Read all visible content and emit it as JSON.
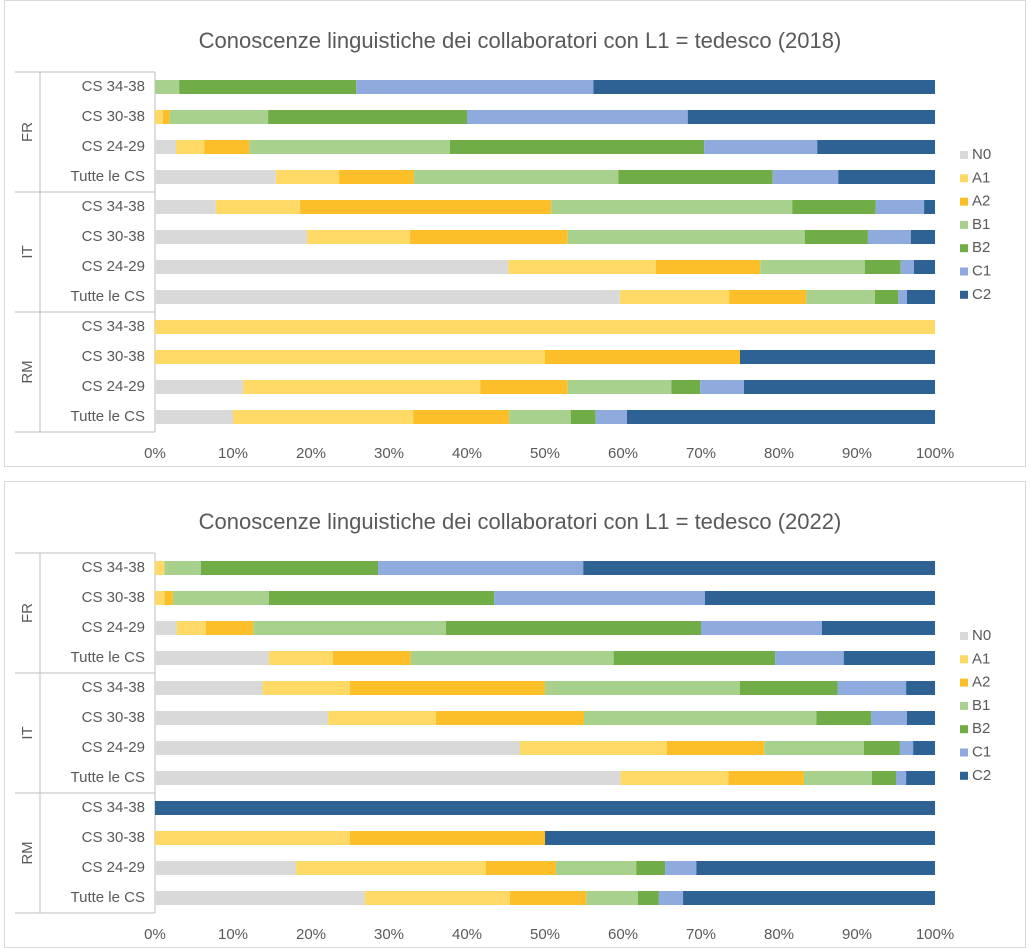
{
  "chart_data": [
    {
      "type": "stacked_bar_horizontal",
      "title": "Conoscenze linguistiche dei collaboratori con L1 = tedesco (2018)",
      "groups": [
        {
          "name": "FR",
          "categories": [
            "CS 34-38",
            "CS 30-38",
            "CS 24-29",
            "Tutte le CS"
          ]
        },
        {
          "name": "IT",
          "categories": [
            "CS 34-38",
            "CS 30-38",
            "CS 24-29",
            "Tutte le CS"
          ]
        },
        {
          "name": "RM",
          "categories": [
            "CS 34-38",
            "CS 30-38",
            "CS 24-29",
            "Tutte le CS"
          ]
        }
      ],
      "xlim": [
        0,
        100
      ],
      "xticks": [
        {
          "value": 0,
          "label": "0%"
        },
        {
          "value": 10,
          "label": "10%"
        },
        {
          "value": 20,
          "label": "20%"
        },
        {
          "value": 30,
          "label": "30%"
        },
        {
          "value": 40,
          "label": "40%"
        },
        {
          "value": 50,
          "label": "50%"
        },
        {
          "value": 60,
          "label": "60%"
        },
        {
          "value": 70,
          "label": "70%"
        },
        {
          "value": 80,
          "label": "80%"
        },
        {
          "value": 90,
          "label": "90%"
        },
        {
          "value": 100,
          "label": "100%"
        }
      ],
      "series": [
        {
          "name": "N0",
          "color": "#d9d9d9",
          "values": [
            0,
            0,
            2.7,
            15.5,
            7.8,
            19.5,
            45.3,
            59.6,
            0,
            0,
            11.3,
            10
          ]
        },
        {
          "name": "A1",
          "color": "#ffd966",
          "values": [
            0,
            1.0,
            3.6,
            8.1,
            10.8,
            13.2,
            18.9,
            14.0,
            100,
            50,
            30.4,
            23.1
          ]
        },
        {
          "name": "A2",
          "color": "#fcbf2a",
          "values": [
            0,
            0.9,
            5.8,
            9.6,
            32.2,
            20.2,
            13.4,
            9.9,
            0,
            25,
            11.2,
            12.3
          ]
        },
        {
          "name": "B1",
          "color": "#a9d18e",
          "values": [
            3.1,
            12.6,
            25.7,
            26.2,
            30.9,
            30.4,
            13.4,
            8.8,
            0,
            0,
            13.3,
            7.9
          ]
        },
        {
          "name": "B2",
          "color": "#70ad47",
          "values": [
            22.7,
            25.5,
            32.6,
            19.8,
            10.7,
            8.1,
            4.6,
            3.0,
            0,
            0,
            3.7,
            3.2
          ]
        },
        {
          "name": "C1",
          "color": "#8faadc",
          "values": [
            30.4,
            28.3,
            14.5,
            8.4,
            6.2,
            5.5,
            1.7,
            1.1,
            0,
            0,
            5.6,
            4.0
          ]
        },
        {
          "name": "C2",
          "color": "#2e6294",
          "values": [
            43.8,
            31.7,
            15.1,
            12.4,
            1.4,
            3.1,
            2.7,
            3.6,
            0,
            25,
            24.5,
            39.5
          ]
        }
      ]
    },
    {
      "type": "stacked_bar_horizontal",
      "title": "Conoscenze linguistiche dei collaboratori con L1 = tedesco (2022)",
      "groups": [
        {
          "name": "FR",
          "categories": [
            "CS 34-38",
            "CS 30-38",
            "CS 24-29",
            "Tutte le CS"
          ]
        },
        {
          "name": "IT",
          "categories": [
            "CS 34-38",
            "CS 30-38",
            "CS 24-29",
            "Tutte le CS"
          ]
        },
        {
          "name": "RM",
          "categories": [
            "CS 34-38",
            "CS 30-38",
            "CS 24-29",
            "Tutte le CS"
          ]
        }
      ],
      "xlim": [
        0,
        100
      ],
      "xticks": [
        {
          "value": 0,
          "label": "0%"
        },
        {
          "value": 10,
          "label": "10%"
        },
        {
          "value": 20,
          "label": "20%"
        },
        {
          "value": 30,
          "label": "30%"
        },
        {
          "value": 40,
          "label": "40%"
        },
        {
          "value": 50,
          "label": "50%"
        },
        {
          "value": 60,
          "label": "60%"
        },
        {
          "value": 70,
          "label": "70%"
        },
        {
          "value": 80,
          "label": "80%"
        },
        {
          "value": 90,
          "label": "90%"
        },
        {
          "value": 100,
          "label": "100%"
        }
      ],
      "series": [
        {
          "name": "N0",
          "color": "#d9d9d9",
          "values": [
            0,
            0,
            2.8,
            14.6,
            13.8,
            22.2,
            46.8,
            59.7,
            0,
            0,
            18.1,
            26.9
          ]
        },
        {
          "name": "A1",
          "color": "#ffd966",
          "values": [
            1.2,
            1.2,
            3.7,
            8.2,
            11.2,
            13.8,
            18.8,
            13.8,
            0,
            25,
            24.3,
            18.6
          ]
        },
        {
          "name": "A2",
          "color": "#fcbf2a",
          "values": [
            0,
            1.1,
            6.1,
            10.0,
            25,
            19,
            12.5,
            9.7,
            0,
            25,
            9.0,
            9.8
          ]
        },
        {
          "name": "B1",
          "color": "#a9d18e",
          "values": [
            4.7,
            12.3,
            24.7,
            26.0,
            25,
            29.8,
            12.8,
            8.7,
            0,
            0,
            10.3,
            6.6
          ]
        },
        {
          "name": "B2",
          "color": "#70ad47",
          "values": [
            22.7,
            28.9,
            32.7,
            20.7,
            12.5,
            7,
            4.6,
            3.1,
            0,
            0,
            3.7,
            2.7
          ]
        },
        {
          "name": "C1",
          "color": "#8faadc",
          "values": [
            26.3,
            27.0,
            15.5,
            8.8,
            8.8,
            4.6,
            1.7,
            1.3,
            0,
            0,
            4.0,
            3.1
          ]
        },
        {
          "name": "C2",
          "color": "#2e6294",
          "values": [
            45.1,
            29.5,
            14.5,
            11.7,
            3.7,
            3.6,
            2.8,
            3.7,
            100,
            50,
            30.6,
            32.3
          ]
        }
      ]
    }
  ]
}
